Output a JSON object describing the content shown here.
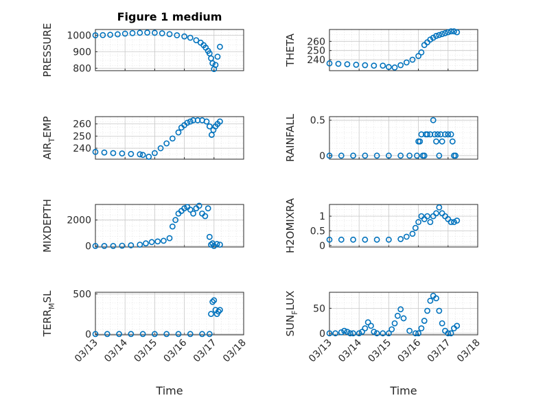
{
  "chart_data": [
    {
      "type": "scatter",
      "title": "Figure 1 medium",
      "ylabel": "PRESSURE",
      "ylabel_sub": "",
      "ylabel_tail": "",
      "yticks": [
        800,
        900,
        1000
      ],
      "ylim": [
        785,
        1035
      ],
      "xlim": [
        0,
        5
      ],
      "xticks": [
        0,
        1,
        2,
        3,
        4,
        5
      ],
      "xticklabels": [],
      "xlabel": "",
      "x": [
        0,
        0.25,
        0.5,
        0.75,
        1,
        1.25,
        1.5,
        1.75,
        2,
        2.25,
        2.5,
        2.75,
        3,
        3.2,
        3.4,
        3.55,
        3.65,
        3.72,
        3.8,
        3.85,
        3.9,
        3.95,
        4,
        4.05,
        4.12,
        4.2
      ],
      "y": [
        1000,
        1001,
        1003,
        1006,
        1010,
        1013,
        1015,
        1016,
        1015,
        1012,
        1007,
        1000,
        993,
        985,
        970,
        955,
        940,
        925,
        905,
        890,
        860,
        830,
        795,
        820,
        870,
        930
      ]
    },
    {
      "type": "scatter",
      "title": "",
      "ylabel": "THETA",
      "ylabel_sub": "",
      "ylabel_tail": "",
      "yticks": [
        240,
        250,
        260
      ],
      "ylim": [
        228,
        273
      ],
      "xlim": [
        0,
        5
      ],
      "xticks": [
        0,
        1,
        2,
        3,
        4,
        5
      ],
      "xticklabels": [],
      "xlabel": "",
      "x": [
        0,
        0.3,
        0.6,
        0.9,
        1.2,
        1.5,
        1.8,
        2.0,
        2.2,
        2.4,
        2.6,
        2.8,
        3.0,
        3.1,
        3.2,
        3.3,
        3.4,
        3.5,
        3.6,
        3.7,
        3.8,
        3.9,
        4.0,
        4.1,
        4.2,
        4.3
      ],
      "y": [
        236,
        235.5,
        235,
        234.5,
        234,
        233.5,
        233.5,
        232,
        231.5,
        234,
        237,
        240,
        244,
        248,
        256,
        259,
        262,
        264,
        266,
        267,
        268,
        269,
        270,
        271,
        271,
        270
      ]
    },
    {
      "type": "scatter",
      "title": "",
      "ylabel": "AIR",
      "ylabel_sub": "T",
      "ylabel_tail": "EMP",
      "yticks": [
        240,
        250,
        260
      ],
      "ylim": [
        231,
        266
      ],
      "xlim": [
        0,
        5
      ],
      "xticks": [
        0,
        1,
        2,
        3,
        4,
        5
      ],
      "xticklabels": [],
      "xlabel": "",
      "x": [
        0,
        0.3,
        0.6,
        0.9,
        1.2,
        1.5,
        1.6,
        1.8,
        2.0,
        2.2,
        2.4,
        2.6,
        2.8,
        2.9,
        3.0,
        3.1,
        3.2,
        3.3,
        3.45,
        3.6,
        3.75,
        3.85,
        3.92,
        3.98,
        4.05,
        4.12,
        4.2
      ],
      "y": [
        237,
        236.5,
        236,
        235.7,
        235.3,
        235,
        234.5,
        233,
        236,
        240,
        244,
        248,
        253,
        257,
        259,
        261,
        262,
        263,
        263,
        263,
        262,
        258,
        251,
        255,
        258,
        260,
        262
      ]
    },
    {
      "type": "scatter",
      "title": "",
      "ylabel": "RAINFALL",
      "ylabel_sub": "",
      "ylabel_tail": "",
      "yticks": [
        0,
        0.5
      ],
      "yticklabels": [
        "0",
        "0.5"
      ],
      "ylim": [
        -0.05,
        0.55
      ],
      "xlim": [
        0,
        5
      ],
      "xticks": [
        0,
        1,
        2,
        3,
        4,
        5
      ],
      "xticklabels": [],
      "xlabel": "",
      "x": [
        0,
        0.4,
        0.8,
        1.2,
        1.6,
        2.0,
        2.4,
        2.7,
        2.95,
        3.0,
        3.05,
        3.1,
        3.15,
        3.2,
        3.25,
        3.3,
        3.4,
        3.5,
        3.55,
        3.6,
        3.65,
        3.7,
        3.75,
        3.8,
        3.9,
        4.0,
        4.1,
        4.15,
        4.2,
        4.25
      ],
      "y": [
        0,
        0,
        0,
        0,
        0,
        0,
        0,
        0,
        0,
        0.2,
        0.2,
        0.3,
        0,
        0,
        0.3,
        0.3,
        0.3,
        0.5,
        0.3,
        0.2,
        0.3,
        0,
        0.3,
        0.2,
        0.3,
        0.3,
        0.3,
        0.2,
        0,
        0
      ]
    },
    {
      "type": "scatter",
      "title": "",
      "ylabel": "MIXDEPTH",
      "ylabel_sub": "",
      "ylabel_tail": "",
      "yticks": [
        0,
        2000
      ],
      "ylim": [
        -80,
        3200
      ],
      "xlim": [
        0,
        5
      ],
      "xticks": [
        0,
        1,
        2,
        3,
        4,
        5
      ],
      "xticklabels": [],
      "xlabel": "",
      "x": [
        0,
        0.3,
        0.6,
        0.9,
        1.2,
        1.5,
        1.7,
        1.9,
        2.1,
        2.3,
        2.5,
        2.6,
        2.7,
        2.8,
        2.9,
        3.0,
        3.1,
        3.2,
        3.3,
        3.4,
        3.5,
        3.6,
        3.7,
        3.8,
        3.85,
        3.9,
        3.95,
        4.0,
        4.1,
        4.2
      ],
      "y": [
        0,
        0,
        0,
        20,
        50,
        100,
        200,
        300,
        350,
        400,
        600,
        1500,
        2000,
        2500,
        2700,
        2900,
        3000,
        2800,
        2500,
        2900,
        3100,
        2500,
        2300,
        2900,
        700,
        100,
        200,
        0,
        150,
        100
      ]
    },
    {
      "type": "scatter",
      "title": "",
      "ylabel": "H2OMIXRA",
      "ylabel_sub": "",
      "ylabel_tail": "",
      "yticks": [
        0,
        0.5,
        1
      ],
      "yticklabels": [
        "0",
        "0.5",
        "1"
      ],
      "ylim": [
        -0.05,
        1.4
      ],
      "xlim": [
        0,
        5
      ],
      "xticks": [
        0,
        1,
        2,
        3,
        4,
        5
      ],
      "xticklabels": [],
      "xlabel": "",
      "x": [
        0,
        0.4,
        0.8,
        1.2,
        1.6,
        2.0,
        2.4,
        2.6,
        2.8,
        2.9,
        3.0,
        3.1,
        3.2,
        3.3,
        3.4,
        3.5,
        3.6,
        3.7,
        3.8,
        3.9,
        4.0,
        4.1,
        4.2,
        4.3
      ],
      "y": [
        0.2,
        0.2,
        0.2,
        0.2,
        0.2,
        0.2,
        0.22,
        0.3,
        0.4,
        0.6,
        0.8,
        1.0,
        0.9,
        1.0,
        0.8,
        1.0,
        1.1,
        1.3,
        1.1,
        1.0,
        0.9,
        0.8,
        0.8,
        0.85
      ]
    },
    {
      "type": "scatter",
      "title": "",
      "ylabel": "TERR",
      "ylabel_sub": "M",
      "ylabel_tail": "SL",
      "yticks": [
        0,
        500
      ],
      "ylim": [
        -10,
        520
      ],
      "xlim": [
        0,
        5
      ],
      "xticks": [
        0,
        1,
        2,
        3,
        4,
        5
      ],
      "xticklabels": [
        "03/13",
        "03/14",
        "03/15",
        "03/16",
        "03/17",
        "03/18"
      ],
      "xlabel": "Time",
      "x": [
        0,
        0.4,
        0.8,
        1.2,
        1.6,
        2.0,
        2.4,
        2.8,
        3.2,
        3.6,
        3.85,
        3.9,
        3.95,
        4.0,
        4.05,
        4.1,
        4.15,
        4.2
      ],
      "y": [
        0,
        0,
        0,
        0,
        0,
        0,
        0,
        0,
        0,
        0,
        0,
        250,
        400,
        420,
        300,
        250,
        280,
        300
      ]
    },
    {
      "type": "scatter",
      "title": "",
      "ylabel": "SUN",
      "ylabel_sub": "F",
      "ylabel_tail": "LUX",
      "yticks": [
        0,
        50
      ],
      "ylim": [
        -3,
        82
      ],
      "xlim": [
        0,
        5
      ],
      "xticks": [
        0,
        1,
        2,
        3,
        4,
        5
      ],
      "xticklabels": [
        "03/13",
        "03/14",
        "03/15",
        "03/16",
        "03/17",
        "03/18"
      ],
      "xlabel": "Time",
      "x": [
        0,
        0.2,
        0.4,
        0.5,
        0.6,
        0.7,
        0.8,
        1.0,
        1.1,
        1.2,
        1.3,
        1.4,
        1.5,
        1.6,
        1.8,
        2.0,
        2.1,
        2.2,
        2.3,
        2.4,
        2.5,
        2.7,
        2.9,
        3.0,
        3.1,
        3.2,
        3.3,
        3.4,
        3.5,
        3.6,
        3.7,
        3.8,
        3.9,
        4.0,
        4.1,
        4.2,
        4.3
      ],
      "y": [
        0,
        0,
        2,
        5,
        3,
        0,
        0,
        0,
        3,
        10,
        22,
        15,
        3,
        0,
        0,
        0,
        8,
        20,
        35,
        48,
        30,
        5,
        0,
        0,
        10,
        25,
        45,
        65,
        75,
        70,
        45,
        20,
        5,
        0,
        0,
        10,
        15
      ]
    }
  ]
}
